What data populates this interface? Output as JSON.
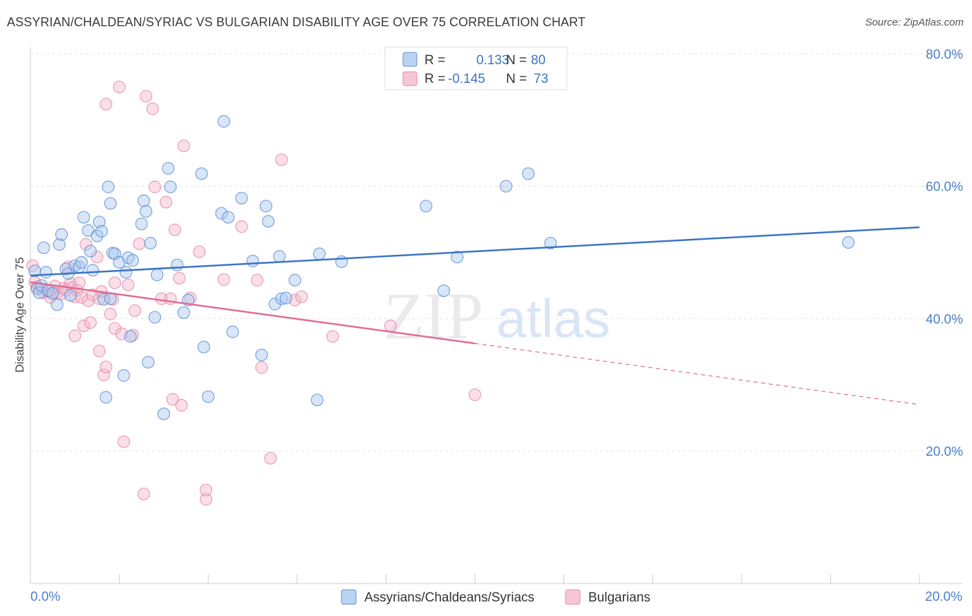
{
  "header": {
    "title": "ASSYRIAN/CHALDEAN/SYRIAC VS BULGARIAN DISABILITY AGE OVER 75 CORRELATION CHART",
    "source": "Source: ZipAtlas.com"
  },
  "legend_top": {
    "r_label": "R =",
    "n_label": "N =",
    "rows": [
      {
        "r": "0.133",
        "n": "80",
        "color": "#a9c8f0"
      },
      {
        "r": "-0.145",
        "n": "73",
        "color": "#f5b8cb"
      }
    ]
  },
  "legend_bottom": [
    {
      "label": "Assyrians/Chaldeans/Syriacs",
      "color": "#a9c8f0"
    },
    {
      "label": "Bulgarians",
      "color": "#f5b8cb"
    }
  ],
  "watermark": {
    "zip": "ZIP",
    "atlas": "atlas"
  },
  "colors": {
    "blue": "#3a74c4",
    "blue_fill": "#a9c8f0",
    "pink": "#e06b95",
    "pink_fill": "#f5b8cb"
  },
  "chart_data": {
    "type": "scatter",
    "title": "ASSYRIAN/CHALDEAN/SYRIAC VS BULGARIAN DISABILITY AGE OVER 75 CORRELATION CHART",
    "xlabel": "",
    "ylabel": "Disability Age Over 75",
    "xlim": [
      0,
      20
    ],
    "ylim": [
      4,
      82
    ],
    "x_tick_labels": [
      "0.0%",
      "20.0%"
    ],
    "y_ticks": [
      20,
      40,
      60,
      80
    ],
    "y_tick_labels": [
      "20.0%",
      "40.0%",
      "60.0%",
      "80.0%"
    ],
    "grid": true,
    "series": [
      {
        "name": "Assyrians/Chaldeans/Syriacs",
        "r": 0.133,
        "n": 80,
        "trend": {
          "x": [
            0,
            20
          ],
          "y": [
            46.5,
            53.8
          ],
          "dashed_from": null
        },
        "points": [
          [
            0.1,
            47.2
          ],
          [
            0.15,
            44.5
          ],
          [
            0.2,
            43.9
          ],
          [
            0.25,
            45.0
          ],
          [
            0.3,
            50.7
          ],
          [
            0.35,
            47.0
          ],
          [
            0.4,
            44.2
          ],
          [
            0.5,
            43.8
          ],
          [
            0.6,
            42.1
          ],
          [
            0.65,
            51.2
          ],
          [
            0.7,
            52.7
          ],
          [
            0.8,
            47.5
          ],
          [
            0.85,
            46.8
          ],
          [
            0.9,
            43.5
          ],
          [
            1.0,
            48.0
          ],
          [
            1.1,
            47.8
          ],
          [
            1.15,
            48.5
          ],
          [
            1.2,
            55.3
          ],
          [
            1.3,
            53.3
          ],
          [
            1.35,
            50.2
          ],
          [
            1.4,
            47.3
          ],
          [
            1.5,
            52.5
          ],
          [
            1.55,
            54.6
          ],
          [
            1.6,
            53.2
          ],
          [
            1.65,
            42.9
          ],
          [
            1.7,
            28.1
          ],
          [
            1.75,
            59.9
          ],
          [
            1.8,
            43.0
          ],
          [
            1.8,
            57.4
          ],
          [
            1.85,
            49.9
          ],
          [
            1.9,
            49.8
          ],
          [
            2.0,
            48.5
          ],
          [
            2.1,
            31.4
          ],
          [
            2.15,
            47.0
          ],
          [
            2.2,
            49.2
          ],
          [
            2.25,
            37.3
          ],
          [
            2.3,
            48.8
          ],
          [
            2.5,
            54.3
          ],
          [
            2.55,
            57.8
          ],
          [
            2.6,
            56.2
          ],
          [
            2.65,
            33.4
          ],
          [
            2.7,
            51.4
          ],
          [
            2.8,
            40.2
          ],
          [
            2.85,
            46.6
          ],
          [
            3.0,
            25.6
          ],
          [
            3.1,
            62.7
          ],
          [
            3.15,
            59.9
          ],
          [
            3.3,
            48.1
          ],
          [
            3.45,
            40.9
          ],
          [
            3.55,
            42.8
          ],
          [
            3.85,
            61.9
          ],
          [
            3.9,
            35.7
          ],
          [
            4.0,
            28.2
          ],
          [
            4.3,
            55.9
          ],
          [
            4.35,
            69.8
          ],
          [
            4.45,
            55.3
          ],
          [
            4.55,
            38.0
          ],
          [
            4.75,
            58.2
          ],
          [
            5.0,
            48.7
          ],
          [
            5.2,
            34.5
          ],
          [
            5.3,
            57.0
          ],
          [
            5.35,
            54.7
          ],
          [
            5.5,
            42.2
          ],
          [
            5.6,
            49.4
          ],
          [
            5.65,
            43.0
          ],
          [
            5.75,
            43.1
          ],
          [
            5.95,
            45.8
          ],
          [
            6.45,
            27.7
          ],
          [
            6.5,
            49.8
          ],
          [
            7.0,
            48.6
          ],
          [
            8.9,
            57.0
          ],
          [
            9.3,
            44.2
          ],
          [
            9.6,
            49.3
          ],
          [
            10.7,
            60.0
          ],
          [
            11.2,
            61.9
          ],
          [
            11.7,
            51.4
          ],
          [
            18.4,
            51.5
          ]
        ]
      },
      {
        "name": "Bulgarians",
        "r": -0.145,
        "n": 73,
        "trend": {
          "x": [
            0,
            20
          ],
          "y": [
            45.5,
            27.0
          ],
          "dashed_from": 10
        },
        "points": [
          [
            0.05,
            48.0
          ],
          [
            0.1,
            45.5
          ],
          [
            0.15,
            44.8
          ],
          [
            0.2,
            44.6
          ],
          [
            0.3,
            43.9
          ],
          [
            0.4,
            44.1
          ],
          [
            0.45,
            43.2
          ],
          [
            0.5,
            44.0
          ],
          [
            0.55,
            44.9
          ],
          [
            0.6,
            43.8
          ],
          [
            0.7,
            43.7
          ],
          [
            0.75,
            44.6
          ],
          [
            0.8,
            44.3
          ],
          [
            0.85,
            47.8
          ],
          [
            0.9,
            45.3
          ],
          [
            0.95,
            44.7
          ],
          [
            1.0,
            43.3
          ],
          [
            1.0,
            37.4
          ],
          [
            1.05,
            44.3
          ],
          [
            1.1,
            45.4
          ],
          [
            1.15,
            43.2
          ],
          [
            1.2,
            38.9
          ],
          [
            1.25,
            51.2
          ],
          [
            1.3,
            42.7
          ],
          [
            1.35,
            39.4
          ],
          [
            1.4,
            43.6
          ],
          [
            1.5,
            49.3
          ],
          [
            1.55,
            43.0
          ],
          [
            1.55,
            35.1
          ],
          [
            1.6,
            44.1
          ],
          [
            1.65,
            31.5
          ],
          [
            1.7,
            32.7
          ],
          [
            1.7,
            72.4
          ],
          [
            1.8,
            40.7
          ],
          [
            1.85,
            42.9
          ],
          [
            1.9,
            45.4
          ],
          [
            1.9,
            38.5
          ],
          [
            2.0,
            75.0
          ],
          [
            2.05,
            37.7
          ],
          [
            2.1,
            21.4
          ],
          [
            2.2,
            45.1
          ],
          [
            2.3,
            37.5
          ],
          [
            2.35,
            41.2
          ],
          [
            2.45,
            51.3
          ],
          [
            2.55,
            13.5
          ],
          [
            2.6,
            73.6
          ],
          [
            2.75,
            71.7
          ],
          [
            2.8,
            59.9
          ],
          [
            2.95,
            43.0
          ],
          [
            3.05,
            57.6
          ],
          [
            3.15,
            43.0
          ],
          [
            3.2,
            27.8
          ],
          [
            3.25,
            53.4
          ],
          [
            3.35,
            46.1
          ],
          [
            3.4,
            26.9
          ],
          [
            3.45,
            66.1
          ],
          [
            3.6,
            43.1
          ],
          [
            3.8,
            50.1
          ],
          [
            3.95,
            12.7
          ],
          [
            3.95,
            14.1
          ],
          [
            4.35,
            45.9
          ],
          [
            4.75,
            53.9
          ],
          [
            5.1,
            45.8
          ],
          [
            5.2,
            32.6
          ],
          [
            5.4,
            18.9
          ],
          [
            5.65,
            64.0
          ],
          [
            5.95,
            42.8
          ],
          [
            6.1,
            43.3
          ],
          [
            6.8,
            37.3
          ],
          [
            8.1,
            38.9
          ],
          [
            10.0,
            28.5
          ]
        ]
      }
    ]
  }
}
